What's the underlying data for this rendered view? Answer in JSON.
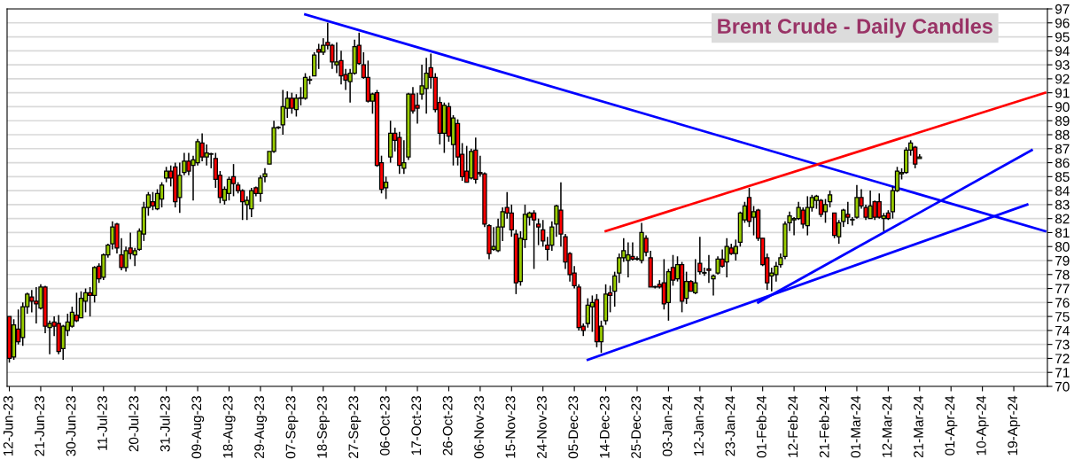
{
  "chart_data": {
    "type": "candlestick",
    "title": "Brent Crude - Daily Candles",
    "categories": [
      "12-Jun-23",
      null,
      null,
      null,
      null,
      null,
      null,
      "21-Jun-23",
      null,
      null,
      null,
      null,
      null,
      null,
      "30-Jun-23",
      null,
      null,
      null,
      null,
      null,
      null,
      "11-Jul-23",
      null,
      null,
      null,
      null,
      null,
      null,
      "20-Jul-23",
      null,
      null,
      null,
      null,
      null,
      null,
      "31-Jul-23",
      null,
      null,
      null,
      null,
      null,
      null,
      "09-Aug-23",
      null,
      null,
      null,
      null,
      null,
      null,
      "18-Aug-23",
      null,
      null,
      null,
      null,
      null,
      null,
      "29-Aug-23",
      null,
      null,
      null,
      null,
      null,
      null,
      "07-Sep-23",
      null,
      null,
      null,
      null,
      null,
      null,
      "18-Sep-23",
      null,
      null,
      null,
      null,
      null,
      null,
      "27-Sep-23",
      null,
      null,
      null,
      null,
      null,
      null,
      "06-Oct-23",
      null,
      null,
      null,
      null,
      null,
      null,
      "17-Oct-23",
      null,
      null,
      null,
      null,
      null,
      null,
      "26-Oct-23",
      null,
      null,
      null,
      null,
      null,
      null,
      "06-Nov-23",
      null,
      null,
      null,
      null,
      null,
      null,
      "15-Nov-23",
      null,
      null,
      null,
      null,
      null,
      null,
      "24-Nov-23",
      null,
      null,
      null,
      null,
      null,
      null,
      "05-Dec-23",
      null,
      null,
      null,
      null,
      null,
      null,
      "14-Dec-23",
      null,
      null,
      null,
      null,
      null,
      null,
      "25-Dec-23",
      null,
      null,
      null,
      null,
      null,
      null,
      "03-Jan-24",
      null,
      null,
      null,
      null,
      null,
      null,
      "12-Jan-24",
      null,
      null,
      null,
      null,
      null,
      null,
      "23-Jan-24",
      null,
      null,
      null,
      null,
      null,
      null,
      "01-Feb-24",
      null,
      null,
      null,
      null,
      null,
      null,
      "12-Feb-24",
      null,
      null,
      null,
      null,
      null,
      null,
      "21-Feb-24",
      null,
      null,
      null,
      null,
      null,
      null,
      "01-Mar-24",
      null,
      null,
      null,
      null,
      null,
      null,
      "12-Mar-24",
      null,
      null,
      null,
      null,
      null,
      null,
      "21-Mar-24",
      null,
      null,
      null,
      null,
      null,
      null,
      "01-Apr-24",
      null,
      null,
      null,
      null,
      null,
      null,
      "10-Apr-24",
      null,
      null,
      null,
      null,
      null,
      null,
      "19-Apr-24",
      null,
      null,
      null,
      null,
      null,
      null,
      null
    ],
    "ohlc": [
      [
        75.0,
        75.0,
        71.7,
        72.0
      ],
      [
        72.1,
        74.8,
        71.9,
        74.4
      ],
      [
        74.1,
        75.5,
        73.0,
        73.2
      ],
      [
        73.5,
        76.0,
        72.9,
        75.7
      ],
      [
        75.7,
        76.7,
        75.2,
        76.6
      ],
      [
        76.4,
        76.9,
        75.3,
        76.1
      ],
      [
        76.1,
        77.1,
        74.5,
        75.9
      ],
      [
        75.6,
        77.3,
        75.5,
        77.1
      ],
      [
        77.1,
        77.2,
        73.8,
        74.3
      ],
      [
        74.2,
        74.7,
        72.3,
        74.5
      ],
      [
        74.6,
        75.0,
        73.6,
        74.3
      ],
      [
        74.5,
        75.1,
        72.3,
        72.5
      ],
      [
        72.7,
        74.4,
        71.9,
        74.3
      ],
      [
        74.0,
        75.2,
        73.6,
        74.6
      ],
      [
        74.3,
        75.7,
        74.2,
        75.3
      ],
      [
        75.1,
        76.7,
        74.6,
        74.7
      ],
      [
        74.9,
        76.8,
        74.9,
        76.3
      ],
      [
        76.1,
        77.0,
        75.3,
        76.7
      ],
      [
        76.7,
        77.1,
        75.0,
        76.5
      ],
      [
        76.5,
        78.6,
        76.0,
        78.5
      ],
      [
        78.6,
        78.8,
        77.4,
        77.7
      ],
      [
        77.8,
        79.5,
        77.6,
        79.4
      ],
      [
        79.4,
        80.2,
        79.2,
        80.1
      ],
      [
        80.2,
        81.8,
        79.8,
        81.4
      ],
      [
        81.6,
        81.7,
        79.5,
        79.9
      ],
      [
        79.4,
        80.6,
        78.3,
        78.5
      ],
      [
        78.5,
        80.0,
        78.2,
        79.7
      ],
      [
        79.9,
        81.0,
        79.1,
        79.5
      ],
      [
        79.4,
        79.9,
        78.6,
        79.7
      ],
      [
        79.8,
        81.3,
        79.7,
        81.1
      ],
      [
        80.9,
        83.2,
        80.4,
        82.8
      ],
      [
        82.8,
        83.9,
        82.2,
        83.7
      ],
      [
        83.2,
        83.9,
        82.6,
        82.9
      ],
      [
        82.7,
        84.1,
        82.6,
        83.8
      ],
      [
        83.4,
        84.6,
        82.8,
        84.4
      ],
      [
        84.9,
        85.7,
        84.6,
        85.4
      ],
      [
        85.4,
        85.8,
        84.3,
        84.9
      ],
      [
        85.7,
        86.0,
        82.8,
        83.2
      ],
      [
        83.5,
        86.0,
        82.4,
        85.1
      ],
      [
        85.3,
        86.7,
        85.1,
        86.1
      ],
      [
        86.1,
        86.7,
        85.1,
        85.4
      ],
      [
        85.8,
        86.5,
        83.3,
        86.2
      ],
      [
        86.0,
        87.7,
        85.8,
        87.5
      ],
      [
        87.4,
        88.1,
        86.1,
        86.4
      ],
      [
        86.4,
        87.3,
        85.8,
        86.7
      ],
      [
        86.6,
        86.7,
        85.6,
        86.6
      ],
      [
        86.3,
        86.7,
        84.2,
        84.8
      ],
      [
        85.1,
        85.4,
        83.1,
        83.5
      ],
      [
        83.3,
        84.3,
        83.0,
        84.1
      ],
      [
        83.8,
        85.0,
        83.3,
        84.8
      ],
      [
        85.0,
        85.9,
        83.6,
        84.5
      ],
      [
        84.4,
        84.6,
        83.8,
        84.0
      ],
      [
        84.0,
        84.1,
        81.9,
        83.2
      ],
      [
        83.0,
        83.6,
        81.9,
        83.3
      ],
      [
        82.7,
        84.2,
        82.1,
        84.0
      ],
      [
        84.2,
        84.3,
        83.6,
        83.8
      ],
      [
        83.8,
        85.1,
        83.2,
        84.9
      ],
      [
        85.0,
        85.6,
        84.6,
        85.2
      ],
      [
        85.9,
        86.8,
        85.9,
        86.8
      ],
      [
        86.8,
        89.0,
        86.7,
        88.5
      ],
      [
        88.5,
        88.6,
        88.4,
        88.5
      ],
      [
        88.7,
        91.2,
        88.0,
        90.0
      ],
      [
        89.9,
        91.1,
        89.2,
        90.6
      ],
      [
        90.6,
        91.0,
        89.5,
        89.9
      ],
      [
        89.8,
        90.9,
        89.3,
        90.6
      ],
      [
        90.6,
        91.4,
        90.1,
        90.6
      ],
      [
        90.6,
        92.4,
        90.5,
        92.1
      ],
      [
        91.9,
        92.2,
        91.6,
        91.9
      ],
      [
        92.2,
        93.9,
        92.2,
        93.7
      ],
      [
        94.1,
        94.5,
        92.7,
        93.9
      ],
      [
        93.9,
        94.9,
        93.7,
        94.4
      ],
      [
        94.6,
        96.0,
        94.1,
        94.4
      ],
      [
        94.4,
        94.5,
        92.7,
        93.2
      ],
      [
        93.0,
        94.6,
        92.4,
        93.2
      ],
      [
        93.3,
        94.0,
        91.6,
        92.2
      ],
      [
        92.3,
        92.7,
        91.2,
        91.9
      ],
      [
        91.8,
        92.7,
        90.3,
        92.4
      ],
      [
        92.4,
        94.8,
        92.3,
        94.3
      ],
      [
        94.4,
        95.3,
        93.0,
        93.1
      ],
      [
        93.0,
        93.9,
        92.0,
        92.1
      ],
      [
        92.1,
        93.3,
        90.3,
        90.4
      ],
      [
        90.4,
        91.0,
        89.5,
        90.9
      ],
      [
        91.0,
        91.2,
        85.7,
        85.8
      ],
      [
        86.0,
        86.5,
        83.8,
        84.1
      ],
      [
        84.2,
        85.0,
        83.4,
        84.6
      ],
      [
        86.4,
        89.0,
        86.0,
        88.1
      ],
      [
        88.1,
        88.5,
        86.8,
        87.6
      ],
      [
        87.8,
        88.2,
        85.2,
        85.8
      ],
      [
        85.6,
        87.6,
        85.2,
        86.0
      ],
      [
        86.4,
        91.0,
        86.2,
        90.9
      ],
      [
        90.9,
        91.4,
        89.5,
        89.7
      ],
      [
        90.1,
        91.0,
        88.8,
        89.9
      ],
      [
        90.9,
        93.0,
        90.5,
        91.5
      ],
      [
        91.3,
        93.5,
        89.5,
        92.4
      ],
      [
        92.8,
        93.8,
        91.3,
        92.1
      ],
      [
        92.1,
        92.4,
        89.6,
        89.8
      ],
      [
        90.3,
        90.7,
        87.3,
        88.1
      ],
      [
        88.1,
        90.3,
        86.7,
        90.1
      ],
      [
        90.0,
        90.3,
        87.5,
        87.9
      ],
      [
        87.3,
        89.4,
        85.8,
        89.2
      ],
      [
        88.8,
        89.1,
        85.8,
        86.4
      ],
      [
        86.6,
        87.4,
        84.7,
        85.0
      ],
      [
        85.4,
        87.2,
        84.6,
        84.6
      ],
      [
        84.9,
        87.0,
        84.8,
        86.8
      ],
      [
        86.9,
        87.8,
        84.5,
        84.8
      ],
      [
        85.3,
        86.5,
        85.0,
        85.2
      ],
      [
        85.2,
        85.3,
        81.4,
        81.6
      ],
      [
        81.5,
        81.6,
        79.1,
        79.5
      ],
      [
        79.8,
        81.4,
        79.7,
        80.0
      ],
      [
        79.7,
        82.0,
        79.6,
        81.4
      ],
      [
        81.4,
        82.8,
        80.4,
        82.5
      ],
      [
        82.8,
        83.9,
        82.0,
        82.4
      ],
      [
        82.4,
        83.0,
        80.7,
        81.2
      ],
      [
        80.9,
        81.2,
        76.6,
        77.4
      ],
      [
        77.5,
        81.1,
        77.2,
        80.6
      ],
      [
        80.5,
        83.0,
        79.9,
        82.3
      ],
      [
        82.1,
        82.5,
        81.5,
        82.4
      ],
      [
        82.4,
        82.6,
        78.4,
        81.9
      ],
      [
        81.6,
        82.0,
        80.1,
        81.4
      ],
      [
        81.2,
        81.9,
        80.0,
        80.4
      ],
      [
        80.1,
        80.7,
        79.0,
        79.8
      ],
      [
        80.1,
        81.8,
        79.7,
        81.4
      ],
      [
        81.6,
        83.0,
        80.7,
        82.9
      ],
      [
        82.6,
        84.6,
        80.0,
        80.9
      ],
      [
        80.7,
        80.9,
        78.4,
        78.9
      ],
      [
        79.5,
        79.6,
        77.5,
        78.0
      ],
      [
        78.1,
        78.6,
        77.0,
        77.2
      ],
      [
        77.1,
        77.3,
        74.0,
        74.2
      ],
      [
        74.3,
        74.5,
        73.6,
        74.0
      ],
      [
        74.5,
        76.3,
        74.2,
        75.8
      ],
      [
        75.7,
        76.5,
        73.9,
        76.0
      ],
      [
        76.2,
        76.6,
        72.8,
        73.2
      ],
      [
        73.2,
        74.7,
        72.4,
        74.3
      ],
      [
        74.7,
        77.3,
        74.4,
        76.6
      ],
      [
        76.7,
        77.2,
        75.3,
        76.5
      ],
      [
        76.8,
        78.2,
        75.7,
        77.9
      ],
      [
        78.1,
        79.5,
        77.4,
        79.2
      ],
      [
        79.2,
        80.6,
        78.9,
        79.7
      ],
      [
        79.0,
        80.3,
        77.8,
        79.4
      ],
      [
        79.3,
        80.3,
        79.0,
        79.1
      ],
      [
        79.1,
        79.3,
        79.0,
        79.1
      ],
      [
        79.0,
        81.7,
        78.8,
        81.0
      ],
      [
        80.6,
        80.8,
        79.3,
        79.6
      ],
      [
        79.2,
        79.7,
        77.1,
        77.1
      ],
      [
        77.1,
        77.2,
        77.0,
        77.1
      ],
      [
        77.3,
        77.6,
        77.0,
        77.1
      ],
      [
        77.4,
        79.1,
        75.5,
        75.9
      ],
      [
        76.0,
        78.4,
        74.7,
        78.2
      ],
      [
        78.5,
        79.4,
        77.2,
        77.6
      ],
      [
        77.7,
        79.3,
        77.5,
        78.7
      ],
      [
        78.7,
        78.9,
        75.3,
        76.1
      ],
      [
        76.3,
        78.2,
        75.9,
        77.5
      ],
      [
        77.5,
        77.6,
        76.8,
        76.8
      ],
      [
        76.7,
        79.1,
        76.6,
        77.4
      ],
      [
        78.8,
        80.7,
        78.0,
        78.2
      ],
      [
        78.1,
        78.5,
        77.9,
        78.1
      ],
      [
        78.4,
        79.4,
        77.4,
        78.3
      ],
      [
        77.7,
        78.0,
        76.5,
        77.9
      ],
      [
        78.1,
        79.3,
        78.0,
        79.1
      ],
      [
        79.1,
        79.8,
        78.5,
        78.6
      ],
      [
        78.9,
        80.6,
        77.8,
        80.0
      ],
      [
        79.9,
        80.2,
        79.4,
        79.5
      ],
      [
        79.5,
        80.5,
        79.0,
        80.0
      ],
      [
        80.3,
        82.5,
        80.0,
        82.4
      ],
      [
        81.9,
        83.2,
        81.7,
        82.9
      ],
      [
        83.5,
        84.2,
        81.4,
        81.8
      ],
      [
        82.1,
        82.9,
        80.8,
        82.5
      ],
      [
        82.6,
        82.7,
        80.4,
        80.6
      ],
      [
        80.6,
        80.6,
        78.6,
        78.7
      ],
      [
        79.2,
        79.5,
        76.9,
        77.4
      ],
      [
        77.9,
        78.5,
        76.8,
        78.1
      ],
      [
        78.0,
        78.9,
        77.5,
        78.6
      ],
      [
        78.7,
        79.5,
        78.5,
        79.2
      ],
      [
        79.3,
        81.8,
        79.1,
        81.6
      ],
      [
        81.7,
        82.5,
        81.1,
        82.2
      ],
      [
        81.9,
        82.1,
        80.8,
        82.0
      ],
      [
        82.0,
        83.2,
        81.9,
        82.8
      ],
      [
        82.6,
        82.8,
        81.3,
        81.6
      ],
      [
        81.5,
        83.6,
        80.8,
        82.8
      ],
      [
        82.8,
        83.7,
        82.5,
        83.5
      ],
      [
        83.3,
        83.7,
        82.7,
        83.6
      ],
      [
        83.3,
        83.4,
        82.1,
        82.3
      ],
      [
        82.5,
        83.4,
        81.7,
        83.0
      ],
      [
        83.2,
        84.0,
        82.8,
        83.7
      ],
      [
        82.4,
        82.4,
        80.6,
        80.8
      ],
      [
        80.7,
        81.9,
        80.2,
        81.7
      ],
      [
        81.8,
        82.7,
        81.4,
        82.6
      ],
      [
        82.3,
        83.2,
        81.6,
        82.1
      ],
      [
        81.9,
        82.1,
        81.5,
        81.9
      ],
      [
        82.1,
        84.4,
        82.0,
        83.5
      ],
      [
        83.5,
        84.1,
        82.7,
        82.9
      ],
      [
        82.8,
        83.0,
        81.9,
        82.1
      ],
      [
        82.0,
        84.0,
        82.0,
        82.9
      ],
      [
        83.2,
        83.3,
        81.9,
        82.1
      ],
      [
        83.2,
        83.8,
        82.0,
        82.1
      ],
      [
        82.0,
        82.4,
        81.1,
        82.2
      ],
      [
        82.4,
        82.6,
        81.9,
        82.0
      ],
      [
        82.5,
        84.3,
        82.0,
        84.0
      ],
      [
        84.0,
        85.7,
        83.9,
        85.4
      ],
      [
        85.2,
        85.6,
        84.8,
        85.3
      ],
      [
        85.3,
        87.1,
        85.2,
        86.9
      ],
      [
        86.9,
        87.6,
        86.5,
        87.4
      ],
      [
        87.1,
        87.2,
        85.6,
        85.9
      ],
      [
        86.3,
        86.6,
        86.3,
        86.4
      ],
      null,
      null,
      null,
      null,
      null,
      null,
      null,
      null,
      null,
      null,
      null,
      null,
      null,
      null,
      null,
      null,
      null,
      null,
      null,
      null,
      null,
      null,
      null,
      null,
      null,
      null,
      null,
      null
    ],
    "series": [
      {
        "type": "line",
        "color": "#0000ff",
        "values": [
          null,
          null,
          null,
          null,
          null,
          null,
          null,
          null,
          null,
          null,
          null,
          null,
          null,
          null,
          null,
          null,
          null,
          null,
          null,
          null,
          null,
          null,
          null,
          null,
          null,
          null,
          null,
          null,
          null,
          null,
          null,
          null,
          null,
          null,
          null,
          null,
          null,
          null,
          null,
          null,
          null,
          null,
          null,
          null,
          null,
          null,
          null,
          null,
          null,
          null,
          null,
          null,
          null,
          null,
          null,
          null,
          null,
          null,
          null,
          null,
          null,
          null,
          null,
          null,
          null,
          null,
          96.6,
          null,
          null,
          null,
          null,
          null,
          null,
          null,
          null,
          null,
          null,
          null,
          null,
          null,
          null,
          null,
          null,
          null,
          null,
          null,
          null,
          null,
          null,
          null,
          null,
          null,
          null,
          null,
          null,
          null,
          null,
          null,
          null,
          null,
          null,
          null,
          null,
          null,
          null,
          null,
          null,
          null,
          null,
          null,
          null,
          null,
          null,
          null,
          null,
          null,
          null,
          null,
          null,
          null,
          null,
          null,
          null,
          null,
          null,
          null,
          null,
          null,
          null,
          null,
          null,
          null,
          null,
          null,
          null,
          null,
          null,
          null,
          null,
          null,
          null,
          null,
          null,
          null,
          null,
          null,
          null,
          null,
          null,
          null,
          null,
          null,
          null,
          null,
          null,
          null,
          null,
          null,
          null,
          null,
          null,
          null,
          null,
          null,
          null,
          null,
          null,
          null,
          null,
          null,
          null,
          null,
          null,
          null,
          null,
          null,
          null,
          null,
          null,
          null,
          null,
          null,
          null,
          null,
          null,
          null,
          null,
          null,
          null,
          null,
          null,
          null,
          null,
          null,
          null,
          null,
          null,
          null,
          null,
          null,
          null,
          null,
          null,
          null,
          null,
          null,
          null,
          null,
          null,
          null,
          null,
          null,
          null,
          null,
          null,
          null,
          null,
          null,
          null,
          null,
          null,
          null,
          null,
          null,
          null,
          null,
          null,
          null,
          null,
          null,
          null,
          81.1
        ]
      },
      {
        "type": "line",
        "color": "#ff0000",
        "values": [
          null,
          null,
          null,
          null,
          null,
          null,
          null,
          null,
          null,
          null,
          null,
          null,
          null,
          null,
          null,
          null,
          null,
          null,
          null,
          null,
          null,
          null,
          null,
          null,
          null,
          null,
          null,
          null,
          null,
          null,
          null,
          null,
          null,
          null,
          null,
          null,
          null,
          null,
          null,
          null,
          null,
          null,
          null,
          null,
          null,
          null,
          null,
          null,
          null,
          null,
          null,
          null,
          null,
          null,
          null,
          null,
          null,
          null,
          null,
          null,
          null,
          null,
          null,
          null,
          null,
          null,
          null,
          null,
          null,
          null,
          null,
          null,
          null,
          null,
          null,
          null,
          null,
          null,
          null,
          null,
          null,
          null,
          null,
          null,
          null,
          null,
          null,
          null,
          null,
          null,
          null,
          null,
          null,
          null,
          null,
          null,
          null,
          null,
          null,
          null,
          null,
          null,
          null,
          null,
          null,
          null,
          null,
          null,
          null,
          null,
          null,
          null,
          null,
          null,
          null,
          null,
          null,
          null,
          null,
          null,
          null,
          null,
          null,
          null,
          null,
          null,
          null,
          null,
          null,
          null,
          null,
          null,
          null,
          81.1,
          null,
          null,
          null,
          null,
          null,
          null,
          null,
          null,
          null,
          null,
          null,
          null,
          null,
          null,
          null,
          null,
          null,
          null,
          null,
          null,
          null,
          null,
          null,
          null,
          null,
          null,
          null,
          null,
          null,
          null,
          null,
          null,
          null,
          null,
          null,
          null,
          null,
          null,
          null,
          null,
          null,
          null,
          null,
          null,
          null,
          null,
          null,
          null,
          null,
          null,
          null,
          null,
          null,
          null,
          null,
          null,
          null,
          null,
          null,
          null,
          null,
          null,
          null,
          null,
          null,
          null,
          null,
          null,
          null,
          null,
          null,
          null,
          null,
          null,
          null,
          null,
          null,
          null,
          null,
          null,
          null,
          null,
          null,
          null,
          null,
          null,
          null,
          null,
          null,
          null,
          null,
          null,
          null,
          null,
          null,
          null,
          null,
          91.0
        ]
      },
      {
        "type": "line",
        "color": "#0000ff",
        "values": [
          null,
          null,
          null,
          null,
          null,
          null,
          null,
          null,
          null,
          null,
          null,
          null,
          null,
          null,
          null,
          null,
          null,
          null,
          null,
          null,
          null,
          null,
          null,
          null,
          null,
          null,
          null,
          null,
          null,
          null,
          null,
          null,
          null,
          null,
          null,
          null,
          null,
          null,
          null,
          null,
          null,
          null,
          null,
          null,
          null,
          null,
          null,
          null,
          null,
          null,
          null,
          null,
          null,
          null,
          null,
          null,
          null,
          null,
          null,
          null,
          null,
          null,
          null,
          null,
          null,
          null,
          null,
          null,
          null,
          null,
          null,
          null,
          null,
          null,
          null,
          null,
          null,
          null,
          null,
          null,
          null,
          null,
          null,
          null,
          null,
          null,
          null,
          null,
          null,
          null,
          null,
          null,
          null,
          null,
          null,
          null,
          null,
          null,
          null,
          null,
          null,
          null,
          null,
          null,
          null,
          null,
          null,
          null,
          null,
          null,
          null,
          null,
          null,
          null,
          null,
          null,
          null,
          null,
          null,
          null,
          null,
          null,
          null,
          null,
          null,
          null,
          null,
          null,
          null,
          71.9,
          null,
          null,
          null,
          null,
          null,
          null,
          null,
          null,
          null,
          null,
          null,
          null,
          null,
          null,
          null,
          null,
          null,
          null,
          null,
          null,
          null,
          null,
          null,
          null,
          null,
          null,
          null,
          null,
          null,
          null,
          null,
          null,
          null,
          null,
          null,
          null,
          null,
          null,
          null,
          null,
          null,
          null,
          null,
          null,
          null,
          null,
          null,
          null,
          null,
          null,
          null,
          null,
          null,
          null,
          null,
          null,
          null,
          null,
          null,
          null,
          null,
          null,
          null,
          null,
          null,
          null,
          null,
          null,
          null,
          null,
          null,
          null,
          null,
          null,
          null,
          null,
          null,
          null,
          null,
          null,
          null,
          null,
          null,
          null,
          null,
          null,
          null,
          null,
          null,
          null,
          null,
          null,
          null,
          null,
          null,
          null,
          null,
          83.0,
          null,
          null,
          null,
          null
        ]
      },
      {
        "type": "line",
        "color": "#0000ff",
        "values": [
          null,
          null,
          null,
          null,
          null,
          null,
          null,
          null,
          null,
          null,
          null,
          null,
          null,
          null,
          null,
          null,
          null,
          null,
          null,
          null,
          null,
          null,
          null,
          null,
          null,
          null,
          null,
          null,
          null,
          null,
          null,
          null,
          null,
          null,
          null,
          null,
          null,
          null,
          null,
          null,
          null,
          null,
          null,
          null,
          null,
          null,
          null,
          null,
          null,
          null,
          null,
          null,
          null,
          null,
          null,
          null,
          null,
          null,
          null,
          null,
          null,
          null,
          null,
          null,
          null,
          null,
          null,
          null,
          null,
          null,
          null,
          null,
          null,
          null,
          null,
          null,
          null,
          null,
          null,
          null,
          null,
          null,
          null,
          null,
          null,
          null,
          null,
          null,
          null,
          null,
          null,
          null,
          null,
          null,
          null,
          null,
          null,
          null,
          null,
          null,
          null,
          null,
          null,
          null,
          null,
          null,
          null,
          null,
          null,
          null,
          null,
          null,
          null,
          null,
          null,
          null,
          null,
          null,
          null,
          null,
          null,
          null,
          null,
          null,
          null,
          null,
          null,
          null,
          null,
          null,
          null,
          null,
          null,
          null,
          null,
          null,
          null,
          null,
          null,
          null,
          null,
          null,
          null,
          null,
          null,
          null,
          null,
          null,
          null,
          null,
          null,
          null,
          null,
          null,
          null,
          null,
          null,
          null,
          null,
          null,
          null,
          null,
          null,
          null,
          null,
          null,
          null,
          76.0,
          null,
          null,
          null,
          null,
          null,
          null,
          null,
          null,
          null,
          null,
          null,
          null,
          null,
          null,
          null,
          null,
          null,
          null,
          null,
          null,
          null,
          null,
          null,
          null,
          null,
          null,
          null,
          null,
          null,
          null,
          null,
          null,
          null,
          null,
          null,
          null,
          null,
          null,
          null,
          null,
          null,
          null,
          null,
          null,
          null,
          null,
          null,
          null,
          null,
          null,
          null,
          null,
          null,
          null,
          null,
          null,
          null,
          null,
          null,
          null,
          86.9,
          null,
          null,
          null
        ]
      }
    ],
    "ylim": [
      70,
      97
    ],
    "yticks": [
      70,
      71,
      72,
      73,
      74,
      75,
      76,
      77,
      78,
      79,
      80,
      81,
      82,
      83,
      84,
      85,
      86,
      87,
      88,
      89,
      90,
      91,
      92,
      93,
      94,
      95,
      96,
      97
    ],
    "grid": "y"
  }
}
